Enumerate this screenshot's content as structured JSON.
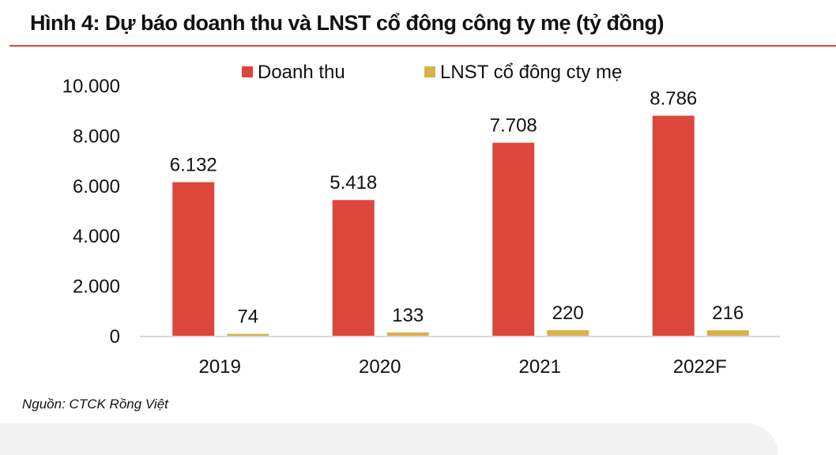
{
  "chart_data": {
    "type": "bar",
    "title": "Hình 4: Dự báo doanh thu và LNST cổ đông công ty mẹ (tỷ đồng)",
    "categories": [
      "2019",
      "2020",
      "2021",
      "2022F"
    ],
    "series": [
      {
        "name": "Doanh thu",
        "values": [
          6132,
          5418,
          7708,
          8786
        ],
        "labels": [
          "6.132",
          "5.418",
          "7.708",
          "8.786"
        ],
        "color": "#dc463b"
      },
      {
        "name": "LNST cổ đông cty mẹ",
        "values": [
          74,
          133,
          220,
          216
        ],
        "labels": [
          "74",
          "133",
          "220",
          "216"
        ],
        "color": "#d9b14a"
      }
    ],
    "ylim": [
      0,
      10000
    ],
    "yticks": [
      "0",
      "2.000",
      "4.000",
      "6.000",
      "8.000",
      "10.000"
    ],
    "legend": "top",
    "grid": false,
    "source": "Nguồn: CTCK Rồng Việt"
  }
}
